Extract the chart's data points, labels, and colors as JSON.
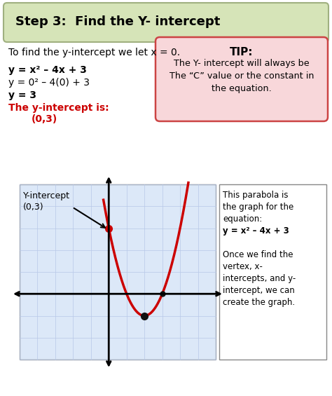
{
  "bg_color": "#ffffff",
  "step_box": {
    "text": "Step 3:  Find the Y- intercept",
    "bg_color": "#d6e4b8",
    "border_color": "#a0b080",
    "fontsize": 13,
    "bold": true
  },
  "intro_text": "To find the y-intercept we let x = 0.",
  "equations": [
    {
      "text": "y = x² – 4x + 3",
      "bold": true,
      "color": "#000000"
    },
    {
      "text": "y = 0² – 4(0) + 3",
      "bold": false,
      "color": "#000000"
    },
    {
      "text": "y = 3",
      "bold": true,
      "color": "#000000"
    }
  ],
  "red_text1": "The y-intercept is:",
  "red_text2": "(0,3)",
  "tip_box": {
    "bg_color": "#f8d7da",
    "border_color": "#cc4444",
    "title": "TIP:",
    "line1": "The Y- intercept will always be",
    "line2": "The “C” value or the constant in",
    "line3": "the equation."
  },
  "graph": {
    "xlim": [
      -5,
      6
    ],
    "ylim": [
      -3,
      5
    ],
    "grid_color": "#b8c8e8",
    "axis_color": "#000000",
    "parabola_color": "#cc0000",
    "dot_color": "#cc0000",
    "bg_color": "#dce8f8"
  },
  "side_text_lines": [
    {
      "text": "This parabola is",
      "bold": false
    },
    {
      "text": "the graph for the",
      "bold": false
    },
    {
      "text": "equation:",
      "bold": false
    },
    {
      "text": "y = x² – 4x + 3",
      "bold": true
    },
    {
      "text": "",
      "bold": false
    },
    {
      "text": "Once we find the",
      "bold": false
    },
    {
      "text": "vertex, x-",
      "bold": false
    },
    {
      "text": "intercepts, and y-",
      "bold": false
    },
    {
      "text": "intercept, we can",
      "bold": false
    },
    {
      "text": "create the graph.",
      "bold": false
    }
  ]
}
